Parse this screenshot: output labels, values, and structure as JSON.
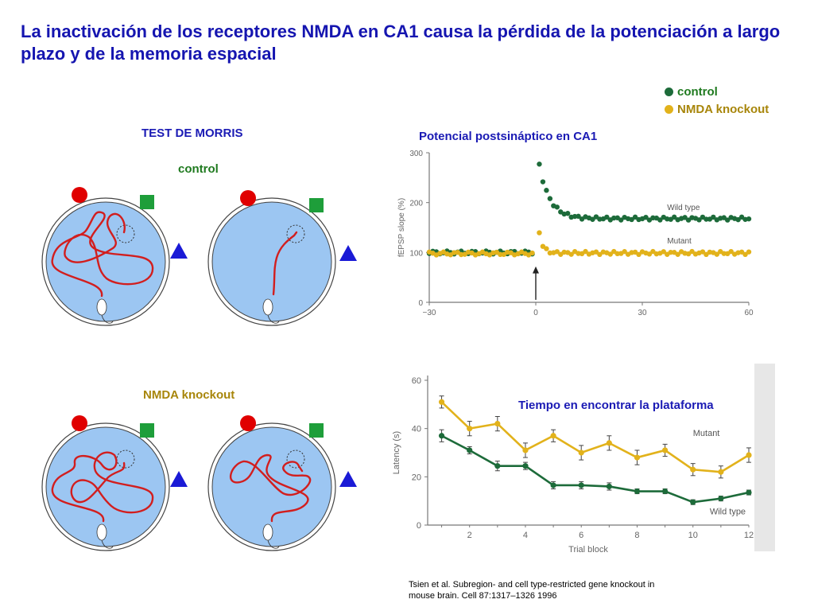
{
  "title": "La inactivación de los receptores NMDA en CA1 causa la pérdida de la potenciación a largo plazo y de la memoria espacial",
  "legend": {
    "items": [
      {
        "label": "control",
        "color": "#1d6b3a"
      },
      {
        "label": "NMDA knockout",
        "color": "#e2b21b"
      }
    ]
  },
  "morris": {
    "test_title": "TEST DE MORRIS",
    "control_label": "control",
    "knockout_label": "NMDA knockout"
  },
  "colors": {
    "pool": "#9cc6f2",
    "path": "#d21e1e",
    "cue_circle": "#e00000",
    "cue_square": "#1e9e3a",
    "cue_triangle": "#1a1ad6",
    "control": "#1d6b3a",
    "knockout": "#e2b21b",
    "axis": "#777777"
  },
  "chart_data": [
    {
      "type": "scatter",
      "title": "Potencial postsináptico  en CA1",
      "xlabel": "",
      "ylabel": "fEPSP slope (%)",
      "xlim": [
        -30,
        60
      ],
      "ylim": [
        0,
        300
      ],
      "x_ticks": [
        -30,
        0,
        30,
        60
      ],
      "y_ticks": [
        0,
        100,
        200,
        300
      ],
      "x_tick_labels": [
        "−30",
        "0",
        "30",
        "60"
      ],
      "y_tick_labels": [
        "0",
        "100",
        "200",
        "300"
      ],
      "stimulus_time": 0,
      "series": [
        {
          "name": "Wild type",
          "pre": {
            "x_start": -30,
            "x_end": -1,
            "step": 1,
            "baseline": 100
          },
          "post": {
            "x_start": 1,
            "x_end": 60,
            "step": 1,
            "peak": 275,
            "plateau": 168,
            "tau": 3
          }
        },
        {
          "name": "Mutant",
          "pre": {
            "x_start": -30,
            "x_end": -1,
            "step": 1,
            "baseline": 98
          },
          "post": {
            "x_start": 1,
            "x_end": 60,
            "step": 1,
            "peak": 140,
            "plateau": 99,
            "tau": 1
          }
        }
      ],
      "annotations": [
        "Wild type",
        "Mutant"
      ]
    },
    {
      "type": "line",
      "title": "Tiempo en encontrar la plataforma",
      "xlabel": "Trial block",
      "ylabel": "Latency (s)",
      "xlim": [
        0.5,
        12
      ],
      "ylim": [
        0,
        60
      ],
      "x_ticks": [
        2,
        4,
        6,
        8,
        10,
        12
      ],
      "y_ticks": [
        0,
        20,
        40,
        60
      ],
      "x": [
        1,
        2,
        3,
        4,
        5,
        6,
        7,
        8,
        9,
        10,
        11,
        12
      ],
      "series": [
        {
          "name": "Mutant",
          "values": [
            51,
            40,
            42,
            31,
            37,
            30,
            34,
            28,
            31,
            23,
            22,
            29
          ],
          "err": [
            2.5,
            3,
            3,
            3,
            2.5,
            3,
            3,
            3,
            2.5,
            2.5,
            2.5,
            3
          ]
        },
        {
          "name": "Wild type",
          "values": [
            37,
            31,
            24.5,
            24.5,
            16.5,
            16.5,
            16,
            14,
            14,
            9.5,
            11,
            13.5
          ],
          "err": [
            2.5,
            1.5,
            2,
            1.5,
            1.5,
            1.5,
            1.5,
            1,
            1,
            1,
            1,
            1
          ]
        }
      ],
      "annotations": [
        "Mutant",
        "Wild type"
      ]
    }
  ],
  "citation": {
    "line1": "Tsien et al. Subregion- and cell type-restricted gene knockout in",
    "line2": "mouse brain. Cell 87:1317–1326 1996"
  }
}
